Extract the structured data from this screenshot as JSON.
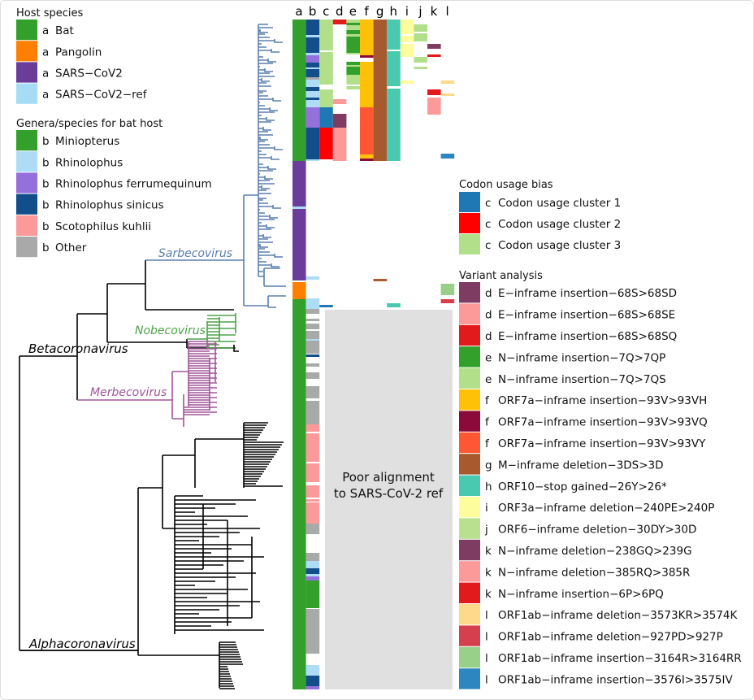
{
  "column_letters": [
    "a",
    "b",
    "c",
    "d",
    "e",
    "f",
    "g",
    "h",
    "i",
    "j",
    "k",
    "l"
  ],
  "clades": {
    "sarbecovirus": "Sarbecovirus",
    "nobecovirus": "Nobecovirus",
    "merbecovirus": "Merbecovirus",
    "betacoronavirus": "Betacoronavirus",
    "alphacoronavirus": "Alphacoronavirus"
  },
  "annotation": [
    "Poor alignment",
    "to SARS-CoV-2 ref"
  ],
  "legends": {
    "host": {
      "title": "Host species",
      "items": [
        {
          "col": "a",
          "label": "Bat",
          "color": "#33a02c"
        },
        {
          "col": "a",
          "label": "Pangolin",
          "color": "#ff7f00"
        },
        {
          "col": "a",
          "label": "SARS−CoV2",
          "color": "#6a3d9a"
        },
        {
          "col": "a",
          "label": "SARS−CoV2−ref",
          "color": "#a6dcf5"
        }
      ]
    },
    "genera": {
      "title": "Genera/species for bat host",
      "items": [
        {
          "col": "b",
          "label": "Miniopterus",
          "color": "#33a02c"
        },
        {
          "col": "b",
          "label": "Rhinolophus",
          "color": "#aedcf7"
        },
        {
          "col": "b",
          "label": "Rhinolophus ferrumequinum",
          "color": "#9370db"
        },
        {
          "col": "b",
          "label": "Rhinolophus sinicus",
          "color": "#124e8a"
        },
        {
          "col": "b",
          "label": "Scotophilus kuhlii",
          "color": "#fb9a99"
        },
        {
          "col": "b",
          "label": "Other",
          "color": "#a9a9a9"
        }
      ]
    },
    "codon": {
      "title": "Codon usage bias",
      "items": [
        {
          "col": "c",
          "label": "Codon usage cluster 1",
          "color": "#1f78b4"
        },
        {
          "col": "c",
          "label": "Codon usage cluster 2",
          "color": "#ff0000"
        },
        {
          "col": "c",
          "label": "Codon usage cluster 3",
          "color": "#b2df8a"
        }
      ]
    },
    "variant": {
      "title": "Variant analysis",
      "items": [
        {
          "col": "d",
          "label": "E−inframe insertion−68S>68SD",
          "color": "#7f3c63"
        },
        {
          "col": "d",
          "label": "E−inframe insertion−68S>68SE",
          "color": "#fb9a99"
        },
        {
          "col": "d",
          "label": "E−inframe insertion−68S>68SQ",
          "color": "#e31a1c"
        },
        {
          "col": "e",
          "label": "N−inframe insertion−7Q>7QP",
          "color": "#33a02c"
        },
        {
          "col": "e",
          "label": "N−inframe insertion−7Q>7QS",
          "color": "#b2df8a"
        },
        {
          "col": "f",
          "label": "ORF7a−inframe insertion−93V>93VH",
          "color": "#ffc107"
        },
        {
          "col": "f",
          "label": "ORF7a−inframe insertion−93V>93VQ",
          "color": "#8b0a3a"
        },
        {
          "col": "f",
          "label": "ORF7a−inframe insertion−93V>93VY",
          "color": "#ff5733"
        },
        {
          "col": "g",
          "label": "M−inframe deletion−3DS>3D",
          "color": "#a85a2e"
        },
        {
          "col": "h",
          "label": "ORF10−stop gained−26Y>26*",
          "color": "#48c9b0"
        },
        {
          "col": "i",
          "label": "ORF3a−inframe deletion−240PE>240P",
          "color": "#fdfd9e"
        },
        {
          "col": "j",
          "label": "ORF6−inframe deletion−30DY>30D",
          "color": "#b8e08f"
        },
        {
          "col": "k",
          "label": "N−inframe deletion−238GQ>239G",
          "color": "#7f3c63"
        },
        {
          "col": "k",
          "label": "N−inframe deletion−385RQ>385R",
          "color": "#fb9a99"
        },
        {
          "col": "k",
          "label": "N−inframe insertion−6P>6PQ",
          "color": "#e31a1c"
        },
        {
          "col": "l",
          "label": "ORF1ab−inframe deletion−3573KR>3574K",
          "color": "#fdd98a"
        },
        {
          "col": "l",
          "label": "ORF1ab−inframe deletion−927PD>927P",
          "color": "#d6404e"
        },
        {
          "col": "l",
          "label": "ORF1ab−inframe insertion−3164R>3164RR",
          "color": "#98d08a"
        },
        {
          "col": "l",
          "label": "ORF1ab−inframe insertion−3576I>3575IV",
          "color": "#2e86c1"
        }
      ]
    }
  },
  "colors": {
    "sarbecovirus": "#5b7fb0",
    "nobecovirus": "#4ea24a",
    "merbecovirus": "#a0559a",
    "tree": "#000000",
    "poor_alignment_box": "#e0e0e0"
  }
}
